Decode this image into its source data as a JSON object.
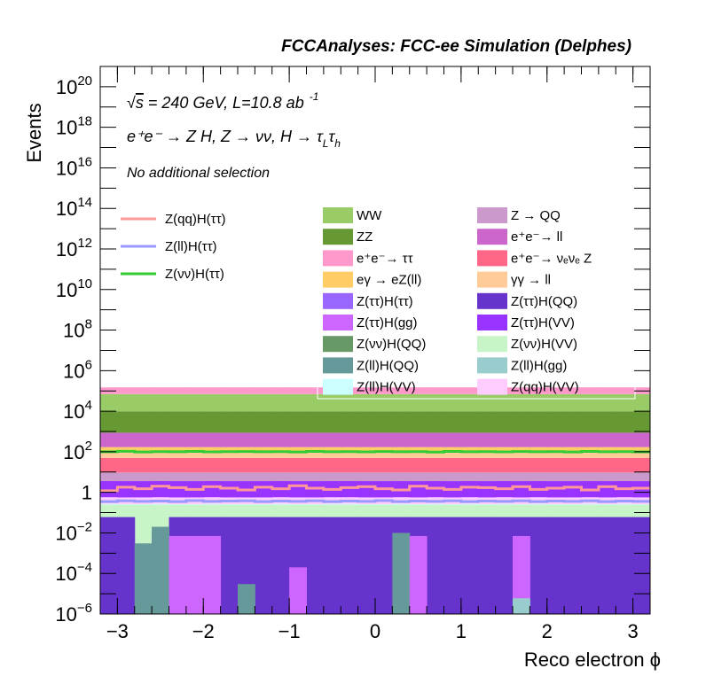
{
  "chart_data": {
    "type": "bar",
    "stacked": true,
    "title": "FCCAnalyses: FCC-ee Simulation (Delphes)",
    "xlabel": "Reco electron ϕ",
    "ylabel": "Events",
    "xlim": [
      -3.2,
      3.2
    ],
    "ylog": true,
    "ylim": [
      1e-06,
      1e+21
    ],
    "x_ticks": [
      -3,
      -2,
      -1,
      0,
      1,
      2,
      3
    ],
    "x_tick_labels": [
      "−3",
      "−2",
      "−1",
      "0",
      "1",
      "2",
      "3"
    ],
    "y_ticks": [
      {
        "value": 1e-06,
        "mant": "10",
        "exp": "−6"
      },
      {
        "value": 0.0001,
        "mant": "10",
        "exp": "−4"
      },
      {
        "value": 0.01,
        "mant": "10",
        "exp": "−2"
      },
      {
        "value": 1,
        "mant": "1",
        "exp": ""
      },
      {
        "value": 100,
        "mant": "10",
        "exp": "2"
      },
      {
        "value": 10000,
        "mant": "10",
        "exp": "4"
      },
      {
        "value": 1000000,
        "mant": "10",
        "exp": "6"
      },
      {
        "value": 100000000,
        "mant": "10",
        "exp": "8"
      },
      {
        "value": 10000000000.0,
        "mant": "10",
        "exp": "10"
      },
      {
        "value": 1000000000000.0,
        "mant": "10",
        "exp": "12"
      },
      {
        "value": 100000000000000.0,
        "mant": "10",
        "exp": "14"
      },
      {
        "value": 1e+16,
        "mant": "10",
        "exp": "16"
      },
      {
        "value": 1e+18,
        "mant": "10",
        "exp": "18"
      },
      {
        "value": 1e+20,
        "mant": "10",
        "exp": "20"
      }
    ],
    "annotations": {
      "energy_prefix": "√",
      "energy_s": "s",
      "energy_text": " = 240 GeV, L=10.8 ab",
      "energy_exp": "-1",
      "process": "e⁺e⁻ → Z H, Z → νν, H → τ",
      "process_sub1": "L",
      "process_tau2": "τ",
      "process_sub2": "h",
      "selection": "No additional selection"
    },
    "bins": 32,
    "stack_series": [
      {
        "name": "Z(νν)H(VV)",
        "color": "#c8f5c8",
        "values": [
          0.25,
          0.25,
          0.25,
          0.25,
          0.25,
          0.25,
          0.25,
          0.25,
          0.25,
          0.25,
          0.25,
          0.25,
          0.25,
          0.25,
          0.25,
          0.25,
          0.25,
          0.25,
          0.25,
          0.25,
          0.25,
          0.25,
          0.25,
          0.25,
          0.25,
          0.25,
          0.25,
          0.25,
          0.25,
          0.25,
          0.25,
          0.25
        ]
      },
      {
        "name": "Z(ll)H(VV)",
        "color": "#ccffff",
        "values": [
          0.02,
          0.01,
          0.01,
          0.02,
          0.01,
          0.01,
          0.02,
          0.01,
          0.01,
          0.01,
          0.02,
          0.01,
          0.01,
          0.02,
          0.02,
          0.01,
          0.01,
          0.02,
          0.01,
          0.02,
          0.01,
          0.02,
          0.01,
          0.02,
          0.01,
          0.02,
          0.01,
          0.01,
          0.02,
          0.01,
          0.02,
          0.01
        ]
      },
      {
        "name": "Z(qq)H(VV)",
        "color": "#ffccff",
        "values": [
          0.3,
          0.3,
          0.3,
          0.3,
          0.3,
          0.3,
          0.3,
          0.3,
          0.3,
          0.3,
          0.3,
          0.3,
          0.3,
          0.3,
          0.3,
          0.3,
          0.3,
          0.3,
          0.3,
          0.3,
          0.3,
          0.3,
          0.3,
          0.3,
          0.3,
          0.3,
          0.3,
          0.3,
          0.3,
          0.3,
          0.3,
          0.3
        ]
      },
      {
        "name": "Z(ττ)H(VV)",
        "color": "#9933ff",
        "values": [
          3,
          3,
          3,
          3,
          3,
          3,
          3,
          3,
          3,
          3,
          3,
          3,
          3,
          3,
          3,
          3,
          3,
          3,
          3,
          3,
          3,
          3,
          3,
          3,
          3,
          3,
          3,
          3,
          3,
          3,
          3,
          3
        ]
      },
      {
        "name": "Z → QQ",
        "color": "#cc99cc",
        "values": [
          6,
          6,
          6,
          6,
          6,
          6,
          6,
          6,
          6,
          6,
          6,
          6,
          6,
          6,
          6,
          6,
          6,
          6,
          6,
          6,
          6,
          6,
          6,
          6,
          6,
          6,
          6,
          6,
          6,
          6,
          6,
          6
        ]
      },
      {
        "name": "e⁺e⁻→ νₑνₑ Z",
        "color": "#ff6688",
        "values": [
          40,
          40,
          40,
          40,
          40,
          40,
          40,
          40,
          40,
          40,
          40,
          40,
          40,
          40,
          40,
          40,
          40,
          40,
          40,
          40,
          40,
          40,
          40,
          40,
          40,
          40,
          40,
          40,
          40,
          40,
          40,
          40
        ]
      },
      {
        "name": "γγ → ll",
        "color": "#ffcc99",
        "values": [
          60,
          60,
          60,
          60,
          60,
          60,
          60,
          60,
          60,
          60,
          60,
          60,
          60,
          60,
          60,
          60,
          60,
          60,
          60,
          60,
          60,
          60,
          60,
          60,
          60,
          60,
          60,
          60,
          60,
          60,
          60,
          60
        ]
      },
      {
        "name": "eγ → eZ(ll)",
        "color": "#ffcc66",
        "values": [
          60,
          60,
          60,
          60,
          60,
          60,
          60,
          60,
          60,
          60,
          60,
          60,
          60,
          60,
          60,
          60,
          60,
          60,
          60,
          60,
          60,
          60,
          60,
          60,
          60,
          60,
          60,
          60,
          60,
          60,
          60,
          60
        ]
      },
      {
        "name": "e⁺e⁻→ ll",
        "color": "#cc66cc",
        "values": [
          700,
          700,
          700,
          700,
          700,
          700,
          700,
          700,
          700,
          700,
          700,
          700,
          700,
          700,
          700,
          700,
          700,
          700,
          700,
          700,
          700,
          700,
          700,
          700,
          700,
          700,
          700,
          700,
          700,
          700,
          700,
          700
        ]
      },
      {
        "name": "ZZ",
        "color": "#669933",
        "values": [
          9000,
          9000,
          9000,
          9000,
          9000,
          9000,
          9000,
          9000,
          9000,
          9000,
          9000,
          9000,
          9000,
          9000,
          9000,
          9000,
          9000,
          9000,
          9000,
          9000,
          9000,
          9000,
          9000,
          9000,
          9000,
          9000,
          9000,
          9000,
          9000,
          9000,
          9000,
          9000
        ]
      },
      {
        "name": "WW",
        "color": "#99cc66",
        "values": [
          60000,
          60000,
          60000,
          60000,
          60000,
          60000,
          60000,
          60000,
          60000,
          60000,
          60000,
          60000,
          60000,
          60000,
          60000,
          60000,
          60000,
          60000,
          60000,
          60000,
          60000,
          60000,
          60000,
          60000,
          60000,
          60000,
          60000,
          60000,
          60000,
          60000,
          60000,
          60000
        ]
      },
      {
        "name": "e⁺e⁻→ ττ",
        "color": "#ff99cc",
        "values": [
          80000,
          80000,
          80000,
          80000,
          80000,
          80000,
          80000,
          80000,
          80000,
          80000,
          80000,
          80000,
          80000,
          80000,
          80000,
          80000,
          80000,
          80000,
          80000,
          80000,
          80000,
          80000,
          80000,
          80000,
          80000,
          80000,
          80000,
          80000,
          80000,
          80000,
          80000,
          80000
        ]
      }
    ],
    "low_series": [
      {
        "name": "Z(ττ)H(QQ)",
        "color": "#6633cc",
        "values": [
          0.06,
          0.06,
          0.003,
          0.01,
          0.06,
          0.06,
          0.06,
          0.06,
          0.06,
          0.06,
          0.06,
          0.06,
          0.06,
          0.06,
          0.06,
          0.06,
          0.06,
          0.06,
          0.06,
          0.06,
          0.06,
          0.06,
          0.06,
          0.06,
          0.06,
          0.06,
          0.06,
          0.06,
          0.06,
          0.06,
          0.06,
          0.06
        ]
      },
      {
        "name": "Z(ll)H(QQ)",
        "color": "#669999",
        "values": [
          null,
          null,
          0.003,
          0.02,
          null,
          null,
          null,
          null,
          3e-05,
          null,
          null,
          null,
          null,
          null,
          null,
          null,
          null,
          0.01,
          null,
          null,
          null,
          null,
          null,
          null,
          null,
          null,
          null,
          null,
          null,
          null,
          null,
          null
        ]
      },
      {
        "name": "Z(ττ)H(gg)",
        "color": "#cc66ff",
        "values": [
          null,
          null,
          null,
          null,
          0.007,
          0.007,
          0.007,
          null,
          null,
          null,
          null,
          0.0002,
          null,
          null,
          null,
          null,
          null,
          null,
          0.007,
          null,
          null,
          null,
          null,
          null,
          0.007,
          null,
          null,
          null,
          null,
          null,
          null,
          null
        ]
      },
      {
        "name": "Z(ll)H(gg)",
        "color": "#99cccc",
        "values": [
          null,
          null,
          null,
          null,
          null,
          null,
          null,
          null,
          null,
          null,
          null,
          null,
          null,
          null,
          null,
          null,
          null,
          null,
          null,
          null,
          null,
          null,
          null,
          null,
          6e-06,
          null,
          null,
          null,
          null,
          null,
          null,
          null
        ]
      }
    ],
    "lines": [
      {
        "name": "Z(qq)H(ττ)",
        "color": "#ff9999",
        "values": [
          1.2,
          1.8,
          1.5,
          2.0,
          1.7,
          1.4,
          1.9,
          1.6,
          1.3,
          1.8,
          1.5,
          2.1,
          1.6,
          1.4,
          1.7,
          1.9,
          1.5,
          1.3,
          2.0,
          1.6,
          1.4,
          1.8,
          1.7,
          1.5,
          1.9,
          1.4,
          1.6,
          1.8,
          1.3,
          1.9,
          1.5,
          1.6
        ]
      },
      {
        "name": "Z(ll)H(ττ)",
        "color": "#9999ff",
        "values": [
          0.35,
          0.38,
          0.36,
          0.37,
          0.35,
          0.39,
          0.36,
          0.37,
          0.38,
          0.35,
          0.37,
          0.36,
          0.38,
          0.35,
          0.37,
          0.36,
          0.39,
          0.35,
          0.37,
          0.36,
          0.38,
          0.35,
          0.37,
          0.36,
          0.38,
          0.35,
          0.37,
          0.36,
          0.38,
          0.35,
          0.37,
          0.36
        ]
      },
      {
        "name": "Z(νν)H(ττ)",
        "color": "#33cc33",
        "values": [
          100,
          105,
          98,
          102,
          100,
          104,
          99,
          101,
          103,
          100,
          102,
          98,
          104,
          100,
          101,
          99,
          103,
          100,
          102,
          97,
          104,
          100,
          101,
          99,
          103,
          100,
          102,
          98,
          104,
          100,
          101,
          99
        ]
      }
    ],
    "legend_lines": [
      {
        "label": "Z(qq)H(ττ)",
        "color": "#ff9999"
      },
      {
        "label": "Z(ll)H(ττ)",
        "color": "#9999ff"
      },
      {
        "label": "Z(νν)H(ττ)",
        "color": "#33cc33"
      }
    ],
    "legend_fills": [
      {
        "label": "WW",
        "color": "#99cc66"
      },
      {
        "label": "Z → QQ",
        "color": "#cc99cc"
      },
      {
        "label": "ZZ",
        "color": "#669933"
      },
      {
        "label": "e⁺e⁻→ ll",
        "color": "#cc66cc"
      },
      {
        "label": "e⁺e⁻→ ττ",
        "color": "#ff99cc"
      },
      {
        "label": "e⁺e⁻→ νₑνₑ Z",
        "color": "#ff6688"
      },
      {
        "label": "eγ → eZ(ll)",
        "color": "#ffcc66"
      },
      {
        "label": "γγ → ll",
        "color": "#ffcc99"
      },
      {
        "label": "Z(ττ)H(ττ)",
        "color": "#9966ff"
      },
      {
        "label": "Z(ττ)H(QQ)",
        "color": "#6633cc"
      },
      {
        "label": "Z(ττ)H(gg)",
        "color": "#cc66ff"
      },
      {
        "label": "Z(ττ)H(VV)",
        "color": "#9933ff"
      },
      {
        "label": "Z(νν)H(QQ)",
        "color": "#669966"
      },
      {
        "label": "Z(νν)H(VV)",
        "color": "#c8f5c8"
      },
      {
        "label": "Z(ll)H(QQ)",
        "color": "#669999"
      },
      {
        "label": "Z(ll)H(gg)",
        "color": "#99cccc"
      },
      {
        "label": "Z(ll)H(VV)",
        "color": "#ccffff"
      },
      {
        "label": "Z(qq)H(VV)",
        "color": "#ffccff"
      }
    ]
  }
}
